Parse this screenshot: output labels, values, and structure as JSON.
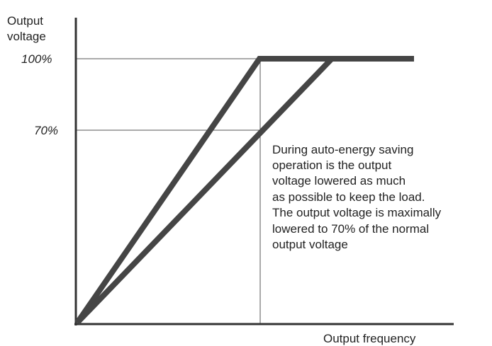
{
  "y_axis_label": [
    "Output",
    "voltage"
  ],
  "x_axis_label": "Output frequency",
  "levels": [
    "100%",
    "70%"
  ],
  "note": [
    "During auto-energy saving",
    "operation is the output",
    "voltage lowered as much",
    "as possible to keep the load.",
    "The output voltage is maximally",
    "lowered to 70% of the normal",
    "output voltage"
  ]
}
